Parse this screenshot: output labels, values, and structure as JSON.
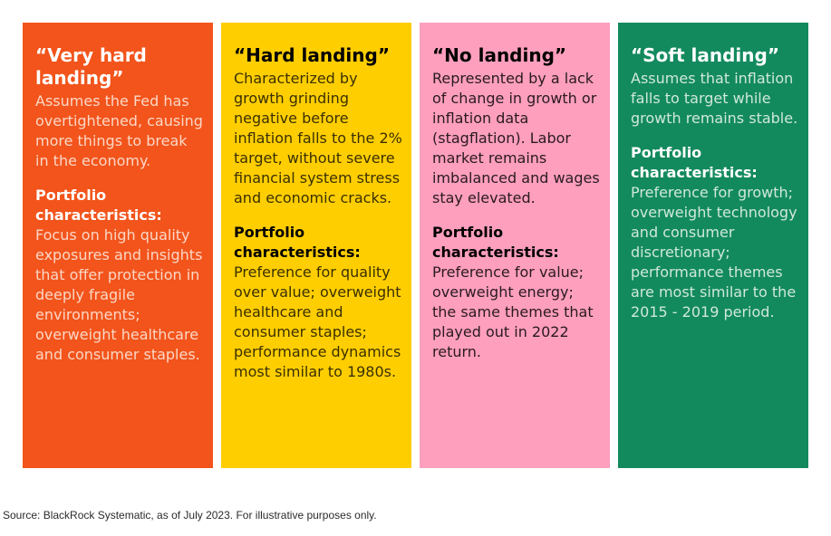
{
  "cards": [
    {
      "title": "“Very hard landing”",
      "description": "Assumes the Fed has overtightened, causing more things to break in the economy.",
      "portfolio_label": "Portfolio characteristics:",
      "portfolio_text": "Focus on high quality exposures and insights that offer protection in deeply fragile environments; overweight healthcare and consumer staples.",
      "background": "#f2541b",
      "title_color": "#ffffff",
      "text_color": "#fbd7c6"
    },
    {
      "title": "“Hard landing”",
      "description": "Characterized by growth grinding negative before inflation falls to the 2% target, without severe financial system stress and economic cracks.",
      "portfolio_label": "Portfolio characteristics:",
      "portfolio_text": "Preference for quality over value; overweight healthcare and consumer staples; performance dynamics most similar to 1980s.",
      "background": "#ffce00",
      "title_color": "#000000",
      "text_color": "#3a3000"
    },
    {
      "title": "“No landing”",
      "description": "Represented by a lack of change in growth or inflation data (stagflation). Labor market remains imbalanced and wages stay elevated.",
      "portfolio_label": "Portfolio characteristics:",
      "portfolio_text": "Preference for value; overweight energy; the same themes that played out in 2022 return.",
      "background": "#fd9fbd",
      "title_color": "#000000",
      "text_color": "#2a1a20"
    },
    {
      "title": "“Soft landing”",
      "description": "Assumes that inflation falls to target while growth remains stable.",
      "portfolio_label": "Portfolio characteristics:",
      "portfolio_text": "Preference for growth; overweight technology and consumer discretionary; performance themes are most similar to the 2015 - 2019 period.",
      "background": "#138a5e",
      "title_color": "#ffffff",
      "text_color": "#cfe8dc"
    }
  ],
  "source_note": "Source: BlackRock Systematic, as of July 2023. For illustrative purposes only."
}
